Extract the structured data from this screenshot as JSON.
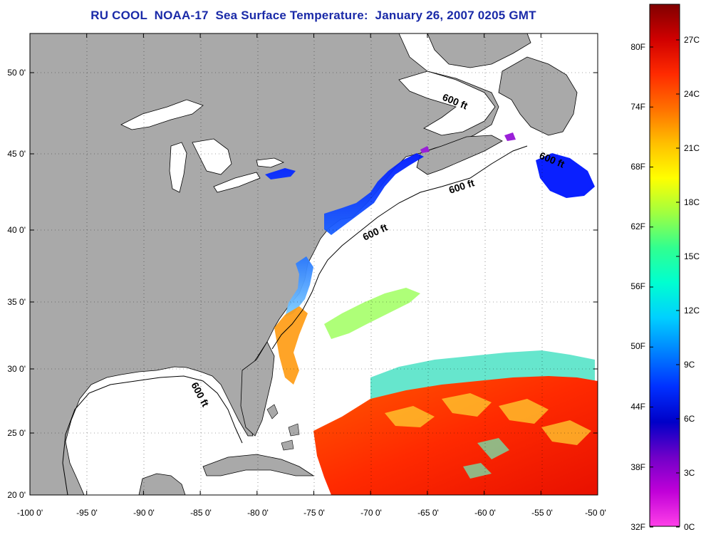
{
  "title": "RU COOL  NOAA-17  Sea Surface Temperature:  January 26, 2007 0205 GMT",
  "map": {
    "lon_ticks": [
      "-100 0'",
      "-95 0'",
      "-90 0'",
      "-85 0'",
      "-80 0'",
      "-75 0'",
      "-70 0'",
      "-65 0'",
      "-60 0'",
      "-55 0'",
      "-50 0'"
    ],
    "lat_ticks": [
      "50 0'",
      "45 0'",
      "40 0'",
      "35 0'",
      "30 0'",
      "25 0'",
      "20 0'"
    ],
    "contour_label": "600 ft",
    "land_color": "#a9a9a9",
    "ocean_color": "#ffffff"
  },
  "colorbar": {
    "fahrenheit_labels": [
      "80F",
      "74F",
      "68F",
      "62F",
      "56F",
      "50F",
      "44F",
      "38F",
      "32F"
    ],
    "celsius_labels": [
      "27C",
      "24C",
      "21C",
      "18C",
      "15C",
      "12C",
      "9C",
      "6C",
      "3C",
      "0C"
    ],
    "colors_top_to_bottom": [
      "#800000",
      "#d00000",
      "#ff2a00",
      "#ff7000",
      "#ffc000",
      "#ffff00",
      "#a0ff40",
      "#30ff90",
      "#00ffd0",
      "#00d0ff",
      "#0080ff",
      "#0030ff",
      "#0000c8",
      "#7000c8",
      "#c000d8",
      "#ff40e8"
    ]
  }
}
